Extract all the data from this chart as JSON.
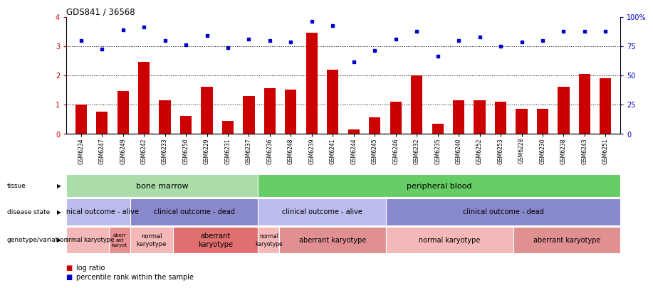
{
  "title": "GDS841 / 36568",
  "samples": [
    "GSM6234",
    "GSM6247",
    "GSM6249",
    "GSM6242",
    "GSM6233",
    "GSM6250",
    "GSM6229",
    "GSM6231",
    "GSM6237",
    "GSM6236",
    "GSM6248",
    "GSM6239",
    "GSM6241",
    "GSM6244",
    "GSM6245",
    "GSM6246",
    "GSM6232",
    "GSM6235",
    "GSM6240",
    "GSM6252",
    "GSM6253",
    "GSM6228",
    "GSM6230",
    "GSM6238",
    "GSM6243",
    "GSM6251"
  ],
  "log_ratio": [
    1.0,
    0.75,
    1.45,
    2.45,
    1.15,
    0.6,
    1.6,
    0.45,
    1.3,
    1.55,
    1.5,
    3.45,
    2.2,
    0.15,
    0.55,
    1.1,
    2.0,
    0.35,
    1.15,
    1.15,
    1.1,
    0.85,
    0.85,
    1.6,
    2.05,
    1.9
  ],
  "percentile_left_scale": [
    3.2,
    2.9,
    3.55,
    3.65,
    3.2,
    3.05,
    3.35,
    2.95,
    3.25,
    3.2,
    3.15,
    3.85,
    3.7,
    2.45,
    2.85,
    3.25,
    3.5,
    2.65,
    3.2,
    3.3,
    3.0,
    3.15,
    3.2,
    3.5,
    3.5,
    3.5
  ],
  "bar_color": "#cc0000",
  "dot_color": "#0000cc",
  "ylim_left": [
    0,
    4
  ],
  "yticks_left": [
    0,
    1,
    2,
    3,
    4
  ],
  "ytick_labels_right": [
    "0",
    "25",
    "50",
    "75",
    "100%"
  ],
  "dotted_lines": [
    1,
    2,
    3
  ],
  "tissue_groups": [
    {
      "label": "bone marrow",
      "start": 0,
      "end": 9,
      "color": "#aaddaa"
    },
    {
      "label": "peripheral blood",
      "start": 9,
      "end": 26,
      "color": "#66cc66"
    }
  ],
  "disease_groups": [
    {
      "label": "clinical outcome - alive",
      "start": 0,
      "end": 3,
      "color": "#bbbbee"
    },
    {
      "label": "clinical outcome - dead",
      "start": 3,
      "end": 9,
      "color": "#8888cc"
    },
    {
      "label": "clinical outcome - alive",
      "start": 9,
      "end": 15,
      "color": "#bbbbee"
    },
    {
      "label": "clinical outcome - dead",
      "start": 15,
      "end": 26,
      "color": "#8888cc"
    }
  ],
  "geno_groups": [
    {
      "label": "normal karyotype",
      "start": 0,
      "end": 2,
      "color": "#f5b8b8",
      "fontsize": 6
    },
    {
      "label": "aberr\nant\nkaryot",
      "start": 2,
      "end": 3,
      "color": "#e89090",
      "fontsize": 5
    },
    {
      "label": "normal\nkaryotype",
      "start": 3,
      "end": 5,
      "color": "#f5b8b8",
      "fontsize": 6
    },
    {
      "label": "aberrant\nkaryotype",
      "start": 5,
      "end": 9,
      "color": "#e07070",
      "fontsize": 7
    },
    {
      "label": "normal\nkaryotype",
      "start": 9,
      "end": 10,
      "color": "#f5b8b8",
      "fontsize": 5.5
    },
    {
      "label": "aberrant karyotype",
      "start": 10,
      "end": 15,
      "color": "#e09090",
      "fontsize": 7
    },
    {
      "label": "normal karyotype",
      "start": 15,
      "end": 21,
      "color": "#f5b8b8",
      "fontsize": 7
    },
    {
      "label": "aberrant karyotype",
      "start": 21,
      "end": 26,
      "color": "#e09090",
      "fontsize": 7
    }
  ],
  "row_labels": [
    "tissue",
    "disease state",
    "genotype/variation"
  ],
  "legend": [
    {
      "label": "log ratio",
      "color": "#cc0000"
    },
    {
      "label": "percentile rank within the sample",
      "color": "#0000cc"
    }
  ]
}
